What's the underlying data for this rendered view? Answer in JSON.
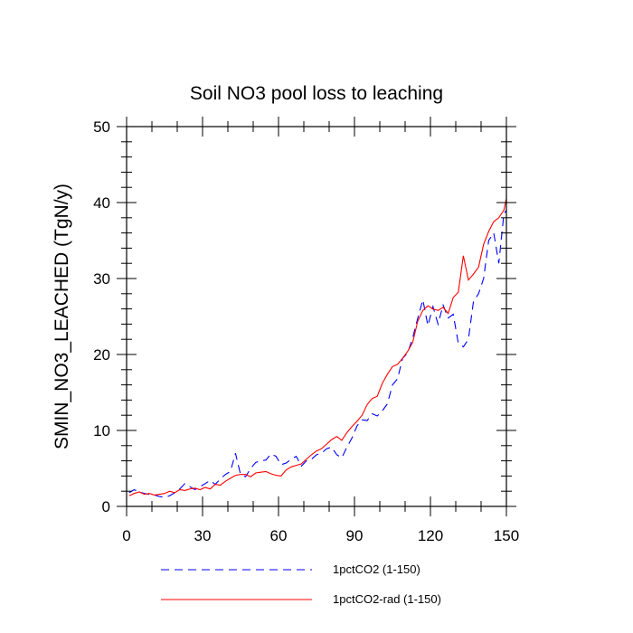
{
  "chart_data": {
    "type": "line",
    "title": "Soil NO3 pool loss to leaching",
    "xlabel": "",
    "ylabel": "SMIN_NO3_LEACHED  (TgN/y)",
    "xlim": [
      0,
      150
    ],
    "ylim": [
      0,
      50
    ],
    "xticks": [
      0,
      30,
      60,
      90,
      120,
      150
    ],
    "yticks": [
      0,
      10,
      20,
      30,
      40,
      50
    ],
    "grid": false,
    "legend_position": "bottom",
    "series": [
      {
        "name": "1pctCO2 (1-150)",
        "color": "#0000ff",
        "dash": "dashed",
        "x": [
          1,
          3,
          5,
          7,
          9,
          11,
          13,
          15,
          17,
          19,
          21,
          23,
          25,
          27,
          29,
          31,
          33,
          35,
          37,
          39,
          41,
          43,
          45,
          47,
          49,
          51,
          53,
          55,
          57,
          59,
          61,
          63,
          65,
          67,
          69,
          71,
          73,
          75,
          77,
          79,
          81,
          83,
          85,
          87,
          89,
          91,
          93,
          95,
          97,
          99,
          101,
          103,
          105,
          107,
          109,
          111,
          113,
          115,
          117,
          119,
          121,
          123,
          125,
          127,
          129,
          131,
          133,
          135,
          137,
          139,
          141,
          143,
          145,
          147,
          149,
          150
        ],
        "y": [
          1.8,
          2.2,
          1.9,
          1.7,
          1.6,
          1.5,
          1.3,
          1.2,
          1.4,
          1.8,
          2.3,
          3.0,
          2.6,
          2.2,
          2.6,
          3.0,
          3.4,
          2.9,
          3.6,
          4.2,
          4.6,
          7.0,
          4.2,
          3.9,
          5.0,
          5.8,
          6.0,
          6.1,
          6.9,
          6.6,
          5.5,
          5.7,
          6.2,
          6.6,
          5.3,
          6.0,
          6.2,
          6.8,
          7.0,
          7.6,
          7.8,
          6.8,
          6.4,
          7.8,
          9.0,
          10.6,
          11.4,
          11.3,
          12.2,
          11.9,
          12.6,
          13.5,
          16.0,
          16.8,
          19.5,
          20.2,
          22.2,
          24.8,
          27.2,
          23.8,
          26.3,
          24.0,
          26.5,
          24.8,
          25.3,
          21.5,
          21.0,
          22.0,
          27.0,
          28.0,
          30.0,
          35.0,
          36.0,
          32.0,
          38.5,
          39.0
        ]
      },
      {
        "name": "1pctCO2-rad (1-150)",
        "color": "#ff0000",
        "dash": "solid",
        "x": [
          1,
          3,
          5,
          7,
          9,
          11,
          13,
          15,
          17,
          19,
          21,
          23,
          25,
          27,
          29,
          31,
          33,
          35,
          37,
          39,
          41,
          43,
          45,
          47,
          49,
          51,
          53,
          55,
          57,
          59,
          61,
          63,
          65,
          67,
          69,
          71,
          73,
          75,
          77,
          79,
          81,
          83,
          85,
          87,
          89,
          91,
          93,
          95,
          97,
          99,
          101,
          103,
          105,
          107,
          109,
          111,
          113,
          115,
          117,
          119,
          121,
          123,
          125,
          127,
          129,
          131,
          133,
          135,
          137,
          139,
          141,
          143,
          145,
          147,
          149,
          150
        ],
        "y": [
          1.4,
          1.7,
          1.9,
          1.6,
          1.7,
          1.5,
          1.6,
          1.7,
          2.0,
          1.8,
          2.2,
          2.1,
          2.3,
          2.4,
          2.2,
          2.5,
          2.3,
          2.9,
          2.8,
          3.3,
          3.7,
          4.1,
          4.2,
          4.2,
          3.9,
          4.4,
          4.5,
          4.6,
          4.3,
          4.1,
          4.0,
          4.8,
          5.2,
          5.4,
          5.6,
          6.2,
          6.8,
          7.3,
          7.6,
          8.2,
          8.8,
          9.2,
          8.7,
          9.7,
          10.5,
          11.2,
          12.0,
          13.4,
          14.2,
          14.5,
          16.2,
          17.4,
          18.4,
          18.7,
          19.5,
          20.4,
          21.6,
          24.4,
          25.8,
          26.4,
          26.0,
          25.8,
          26.2,
          25.4,
          27.5,
          28.2,
          33.0,
          29.8,
          30.6,
          31.5,
          34.5,
          36.2,
          37.5,
          38.0,
          39.0,
          40.5
        ]
      }
    ]
  }
}
